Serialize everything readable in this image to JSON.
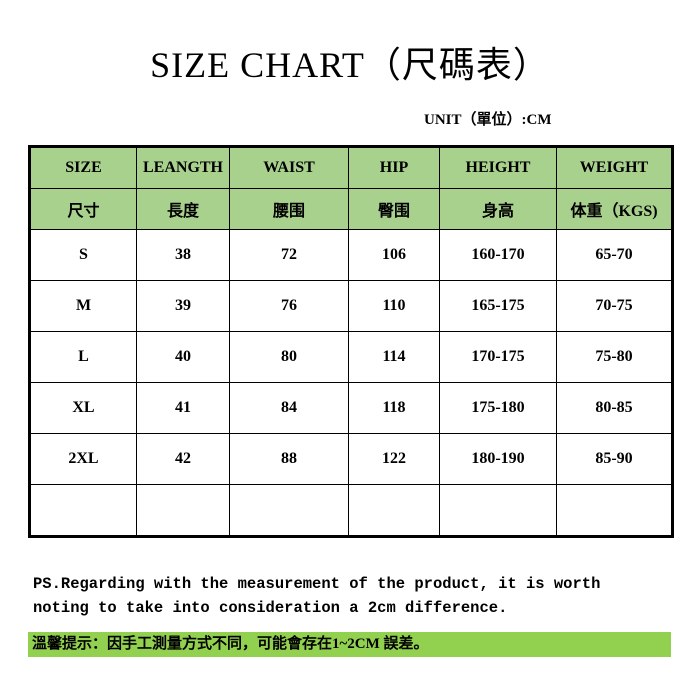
{
  "title": "SIZE CHART（尺碼表）",
  "unit": "UNIT（單位）:CM",
  "table": {
    "headers_en": [
      "SIZE",
      "LEANGTH",
      "WAIST",
      "HIP",
      "HEIGHT",
      "WEIGHT"
    ],
    "headers_zh": [
      "尺寸",
      "長度",
      "腰围",
      "臀围",
      "身高",
      "体重（KGS)"
    ],
    "rows": [
      [
        "S",
        "38",
        "72",
        "106",
        "160-170",
        "65-70"
      ],
      [
        "M",
        "39",
        "76",
        "110",
        "165-175",
        "70-75"
      ],
      [
        "L",
        "40",
        "80",
        "114",
        "170-175",
        "75-80"
      ],
      [
        "XL",
        "41",
        "84",
        "118",
        "175-180",
        "80-85"
      ],
      [
        "2XL",
        "42",
        "88",
        "122",
        "180-190",
        "85-90"
      ],
      [
        "",
        "",
        "",
        "",
        "",
        ""
      ]
    ]
  },
  "ps_line1": "PS.Regarding with the measurement of the product, it is worth",
  "ps_line2": "noting to take into consideration a 2cm difference.",
  "note": "溫馨提示：因手工測量方式不同，可能會存在1~2CM 誤差。",
  "colors": {
    "header_bg": "#a9d18e",
    "note_bg": "#92d050"
  }
}
